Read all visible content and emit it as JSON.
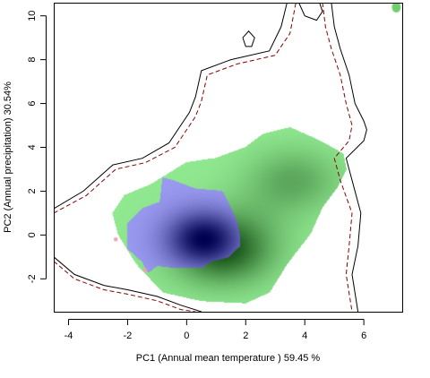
{
  "chart_data": {
    "type": "heatmap",
    "xlabel": "PC1 (Annual mean temperature ) 59.45 %",
    "ylabel": "PC2 (Annual precipitation) 30.54%",
    "xlim": [
      -4.5,
      7.3
    ],
    "ylim": [
      -3.5,
      10.6
    ],
    "x_ticks": [
      -4,
      -2,
      0,
      2,
      4,
      6
    ],
    "y_ticks": [
      -2,
      0,
      2,
      4,
      6,
      8,
      10
    ],
    "grid": false,
    "colors": {
      "density_a_light": "#90e890",
      "density_a_dark": "#134d13",
      "density_b_light": "#9a9af0",
      "density_b_dark": "#000050",
      "overlap": "#f0a0b0",
      "envelope_solid": "#000000",
      "envelope_dashed": "#8b0000"
    },
    "density_a": {
      "cores": [
        {
          "x": 1.2,
          "y": -0.6,
          "sx": 1.4,
          "sy": 1.3,
          "w": 1.0
        },
        {
          "x": 3.6,
          "y": 2.5,
          "sx": 1.3,
          "sy": 1.2,
          "w": 0.55
        }
      ],
      "outline": [
        [
          -2.1,
          1.8
        ],
        [
          -1.2,
          2.3
        ],
        [
          0.0,
          3.3
        ],
        [
          1.0,
          3.5
        ],
        [
          2.0,
          4.0
        ],
        [
          2.6,
          4.6
        ],
        [
          3.5,
          4.9
        ],
        [
          4.5,
          4.3
        ],
        [
          5.3,
          3.7
        ],
        [
          5.4,
          3.0
        ],
        [
          5.1,
          2.2
        ],
        [
          4.6,
          1.3
        ],
        [
          4.2,
          0.1
        ],
        [
          3.4,
          -1.3
        ],
        [
          2.8,
          -2.6
        ],
        [
          2.0,
          -3.1
        ],
        [
          0.5,
          -3.0
        ],
        [
          -0.8,
          -2.6
        ],
        [
          -1.7,
          -1.3
        ],
        [
          -2.3,
          0.0
        ],
        [
          -2.5,
          1.0
        ]
      ]
    },
    "density_b": {
      "cores": [
        {
          "x": 0.6,
          "y": -0.2,
          "sx": 1.0,
          "sy": 1.0,
          "w": 1.0
        }
      ],
      "outline": [
        [
          -2.0,
          0.5
        ],
        [
          -1.5,
          1.2
        ],
        [
          -0.9,
          1.5
        ],
        [
          -0.8,
          2.6
        ],
        [
          -0.5,
          2.5
        ],
        [
          0.3,
          2.1
        ],
        [
          1.2,
          2.0
        ],
        [
          1.5,
          1.2
        ],
        [
          1.7,
          0.6
        ],
        [
          1.8,
          -0.1
        ],
        [
          1.8,
          -0.5
        ],
        [
          1.4,
          -1.0
        ],
        [
          0.8,
          -1.2
        ],
        [
          0.5,
          -1.5
        ],
        [
          -0.3,
          -1.5
        ],
        [
          -1.0,
          -1.4
        ],
        [
          -1.3,
          -1.7
        ],
        [
          -1.5,
          -1.2
        ],
        [
          -2.0,
          -0.6
        ]
      ]
    },
    "overlap_points": [
      [
        -2.4,
        -0.2
      ],
      [
        -1.4,
        -1.6
      ]
    ],
    "envelopes": [
      {
        "style": "solid",
        "points": [
          [
            -4.5,
            1.2
          ],
          [
            -3.5,
            2.0
          ],
          [
            -2.5,
            3.2
          ],
          [
            -1.5,
            3.5
          ],
          [
            -0.6,
            4.2
          ],
          [
            0.1,
            5.6
          ],
          [
            0.3,
            6.3
          ],
          [
            0.5,
            7.5
          ],
          [
            1.5,
            8.0
          ],
          [
            2.8,
            8.4
          ],
          [
            3.2,
            9.5
          ],
          [
            3.4,
            10.6
          ]
        ]
      },
      {
        "style": "solid",
        "points": [
          [
            4.9,
            10.6
          ],
          [
            5.0,
            9.5
          ],
          [
            5.2,
            8.5
          ],
          [
            5.5,
            7.3
          ],
          [
            5.7,
            6.0
          ],
          [
            6.0,
            5.2
          ],
          [
            6.1,
            4.8
          ],
          [
            6.0,
            4.3
          ],
          [
            5.4,
            3.5
          ],
          [
            5.6,
            2.5
          ],
          [
            5.9,
            1.0
          ],
          [
            5.8,
            -0.5
          ],
          [
            5.6,
            -1.8
          ],
          [
            5.8,
            -3.5
          ]
        ]
      },
      {
        "style": "solid",
        "points": [
          [
            -4.5,
            -1.0
          ],
          [
            -3.8,
            -1.8
          ],
          [
            -2.8,
            -2.3
          ],
          [
            -2.0,
            -2.5
          ],
          [
            -1.0,
            -2.8
          ],
          [
            -0.2,
            -3.2
          ],
          [
            0.5,
            -3.5
          ]
        ]
      },
      {
        "style": "dashed",
        "points": [
          [
            -4.5,
            1.0
          ],
          [
            -3.4,
            1.8
          ],
          [
            -2.4,
            3.0
          ],
          [
            -1.4,
            3.3
          ],
          [
            -0.4,
            4.0
          ],
          [
            0.3,
            5.4
          ],
          [
            0.5,
            6.1
          ],
          [
            0.7,
            7.3
          ],
          [
            1.7,
            7.8
          ],
          [
            3.0,
            8.2
          ],
          [
            3.5,
            9.2
          ],
          [
            3.7,
            10.6
          ]
        ]
      },
      {
        "style": "dashed",
        "points": [
          [
            4.6,
            10.6
          ],
          [
            4.7,
            9.5
          ],
          [
            4.9,
            8.5
          ],
          [
            5.2,
            7.3
          ],
          [
            5.4,
            6.0
          ],
          [
            5.6,
            5.0
          ],
          [
            5.5,
            4.3
          ],
          [
            5.0,
            3.5
          ],
          [
            5.2,
            2.5
          ],
          [
            5.6,
            1.0
          ],
          [
            5.5,
            -0.5
          ],
          [
            5.4,
            -1.8
          ],
          [
            5.6,
            -3.5
          ]
        ]
      },
      {
        "style": "dashed",
        "points": [
          [
            -4.5,
            -1.2
          ],
          [
            -3.8,
            -2.0
          ],
          [
            -2.8,
            -2.5
          ],
          [
            -2.0,
            -2.7
          ],
          [
            -1.0,
            -3.0
          ],
          [
            -0.2,
            -3.4
          ],
          [
            0.3,
            -3.5
          ]
        ]
      },
      {
        "style": "solid",
        "points": [
          [
            3.8,
            10.6
          ],
          [
            4.0,
            10.0
          ],
          [
            4.4,
            9.8
          ],
          [
            4.6,
            10.2
          ],
          [
            4.5,
            10.6
          ]
        ]
      },
      {
        "style": "solid",
        "points": [
          [
            1.9,
            9.0
          ],
          [
            2.1,
            9.3
          ],
          [
            2.3,
            9.0
          ],
          [
            2.2,
            8.6
          ],
          [
            2.0,
            8.6
          ],
          [
            1.9,
            9.0
          ]
        ]
      }
    ],
    "corner_patch": {
      "x": 7.1,
      "y": 10.4
    }
  }
}
